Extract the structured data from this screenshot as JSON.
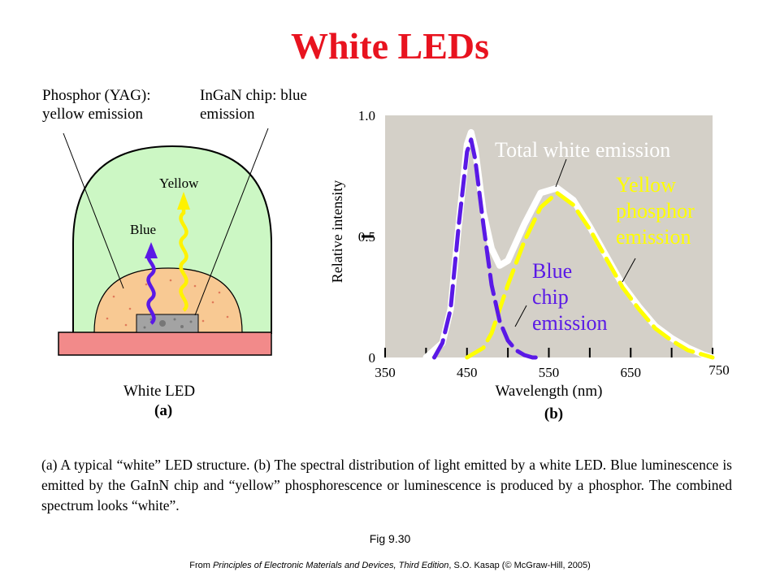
{
  "title": "White LEDs",
  "panel_a": {
    "phosphor_label": [
      "Phosphor (YAG):",
      "yellow emission"
    ],
    "chip_label": [
      "InGaN chip: blue",
      "emission"
    ],
    "yellow_label": "Yellow",
    "blue_label": "Blue",
    "device_label": "White LED",
    "panel_tag": "(a)",
    "colors": {
      "dome": "#ccf7c4",
      "phosphor": "#f8c993",
      "base": "#f28a8a",
      "chip": "#a3a3a3",
      "yellow_ray": "#fff200",
      "blue_ray": "#5a19e6"
    }
  },
  "panel_b": {
    "panel_tag": "(b)",
    "total_label": "Total white emission",
    "yellow_label": [
      "Yellow",
      "phosphor",
      "emission"
    ],
    "blue_label": [
      "Blue",
      "chip",
      "emission"
    ],
    "colors": {
      "plot_bg": "#d4d0c8",
      "total": "#ffffff",
      "yellow": "#ffff00",
      "blue": "#5a19e6"
    }
  },
  "chart_data": {
    "type": "line",
    "xlabel": "Wavelength (nm)",
    "ylabel": "Relative intensity",
    "xlim": [
      350,
      750
    ],
    "ylim": [
      0,
      1.0
    ],
    "xticks": [
      350,
      450,
      550,
      650,
      750
    ],
    "yticks": [
      0,
      0.5,
      1.0
    ],
    "series": [
      {
        "name": "Total white emission",
        "color": "#ffffff",
        "x": [
          400,
          420,
          430,
          440,
          450,
          455,
          460,
          470,
          480,
          490,
          500,
          520,
          540,
          560,
          580,
          600,
          620,
          640,
          660,
          680,
          700,
          720,
          740,
          750
        ],
        "y": [
          0.0,
          0.06,
          0.2,
          0.55,
          0.88,
          0.93,
          0.86,
          0.6,
          0.45,
          0.38,
          0.4,
          0.55,
          0.68,
          0.7,
          0.65,
          0.54,
          0.42,
          0.3,
          0.21,
          0.13,
          0.08,
          0.04,
          0.01,
          0.0
        ]
      },
      {
        "name": "Yellow phosphor emission",
        "color": "#ffff00",
        "x": [
          450,
          470,
          480,
          490,
          500,
          520,
          540,
          560,
          580,
          600,
          620,
          640,
          660,
          680,
          700,
          720,
          740,
          750
        ],
        "y": [
          0.0,
          0.04,
          0.1,
          0.2,
          0.3,
          0.48,
          0.62,
          0.68,
          0.63,
          0.53,
          0.41,
          0.29,
          0.2,
          0.12,
          0.07,
          0.03,
          0.01,
          0.0
        ]
      },
      {
        "name": "Blue chip emission",
        "color": "#5a19e6",
        "x": [
          410,
          420,
          430,
          440,
          450,
          455,
          460,
          470,
          480,
          490,
          500,
          510,
          520,
          530,
          540
        ],
        "y": [
          0.0,
          0.06,
          0.2,
          0.55,
          0.85,
          0.9,
          0.82,
          0.55,
          0.3,
          0.15,
          0.07,
          0.03,
          0.01,
          0.0,
          0.0
        ]
      }
    ]
  },
  "caption": "(a) A typical “white” LED structure. (b) The spectral distribution of light emitted by a white LED. Blue luminescence is emitted by the GaInN chip and “yellow” phosphorescence or luminescence is produced by a phosphor. The combined spectrum looks “white”.",
  "figure_number": "Fig 9.30",
  "source": {
    "prefix": "From ",
    "book": "Principles of Electronic Materials and Devices, Third Edition",
    "suffix": ", S.O. Kasap (© McGraw-Hill,  2005)"
  }
}
